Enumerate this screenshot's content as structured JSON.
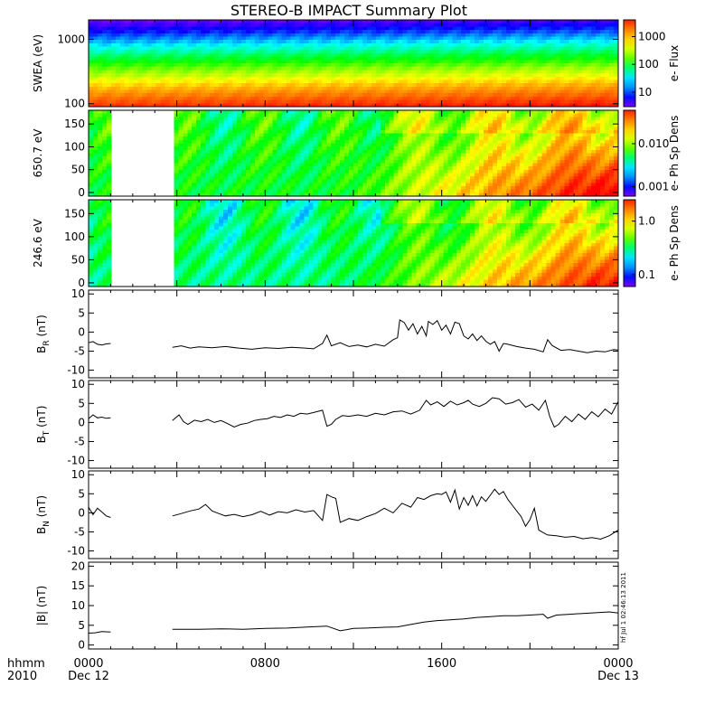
{
  "title": "STEREO-B IMPACT Summary Plot",
  "stamp": "hf Jul 1 02:46:13 2011",
  "x_axis": {
    "row1_label": "hhmm",
    "row2_label": "2010",
    "ticks": [
      {
        "hour": 0,
        "label": "0000",
        "sublabel": "Dec 12"
      },
      {
        "hour": 8,
        "label": "0800",
        "sublabel": ""
      },
      {
        "hour": 16,
        "label": "1600",
        "sublabel": ""
      },
      {
        "hour": 24,
        "label": "0000",
        "sublabel": "Dec 13"
      }
    ],
    "range_hours": [
      0,
      24
    ]
  },
  "chart_data": [
    {
      "type": "heatmap",
      "ylabel": "SWEA (eV)",
      "yscale": "log",
      "ylim": [
        90,
        2000
      ],
      "yticks": [
        {
          "v": 100,
          "label": "100"
        },
        {
          "v": 1000,
          "label": "1000"
        }
      ],
      "colorbar_label": "e- Flux",
      "colorbar_scale": "log",
      "colorbar_range": [
        3,
        4000
      ],
      "colorbar_ticks": [
        {
          "v": 10,
          "label": "10"
        },
        {
          "v": 100,
          "label": "100"
        },
        {
          "v": 1000,
          "label": "1000"
        }
      ]
    },
    {
      "type": "heatmap",
      "ylabel": "650.7 eV",
      "ylim": [
        -8,
        180
      ],
      "yticks": [
        0,
        50,
        100,
        150
      ],
      "colorbar_label": "e- Ph Sp Dens",
      "colorbar_scale": "log",
      "colorbar_range": [
        0.0006,
        0.06
      ],
      "colorbar_ticks": [
        {
          "v": 0.001,
          "label": "0.001"
        },
        {
          "v": 0.01,
          "label": "0.010"
        }
      ],
      "data_gaps_hours": [
        [
          1.0,
          3.8
        ]
      ]
    },
    {
      "type": "heatmap",
      "ylabel": "246.6 eV",
      "ylim": [
        -8,
        180
      ],
      "yticks": [
        0,
        50,
        100,
        150
      ],
      "colorbar_label": "e- Ph Sp Dens",
      "colorbar_scale": "log",
      "colorbar_range": [
        0.06,
        2.5
      ],
      "colorbar_ticks": [
        {
          "v": 0.1,
          "label": "0.1"
        },
        {
          "v": 1.0,
          "label": "1.0"
        }
      ],
      "data_gaps_hours": [
        [
          1.0,
          3.8
        ]
      ]
    },
    {
      "type": "line",
      "ylabel": "B",
      "ylabel_sub": "R",
      "ylabel_unit": "(nT)",
      "ylim": [
        -12,
        11
      ],
      "yticks": [
        -10,
        -5,
        0,
        5,
        10
      ],
      "segments": [
        [
          [
            0.0,
            -2.8
          ],
          [
            0.2,
            -2.5
          ],
          [
            0.4,
            -3.2
          ],
          [
            0.6,
            -3.4
          ],
          [
            0.8,
            -3.1
          ],
          [
            1.0,
            -3.0
          ]
        ],
        [
          [
            3.8,
            -4.0
          ],
          [
            4.2,
            -3.6
          ],
          [
            4.6,
            -4.2
          ],
          [
            5.0,
            -3.9
          ],
          [
            5.6,
            -4.1
          ],
          [
            6.2,
            -3.8
          ],
          [
            6.8,
            -4.2
          ],
          [
            7.4,
            -4.5
          ],
          [
            8.0,
            -4.1
          ],
          [
            8.6,
            -4.3
          ],
          [
            9.2,
            -4.0
          ],
          [
            9.8,
            -4.2
          ],
          [
            10.2,
            -4.4
          ],
          [
            10.6,
            -3.0
          ],
          [
            10.8,
            -0.8
          ],
          [
            11.0,
            -3.6
          ],
          [
            11.4,
            -2.8
          ],
          [
            11.8,
            -3.8
          ],
          [
            12.2,
            -3.4
          ],
          [
            12.6,
            -3.9
          ],
          [
            13.0,
            -3.2
          ],
          [
            13.4,
            -3.7
          ],
          [
            13.8,
            -2.0
          ],
          [
            14.0,
            -1.5
          ],
          [
            14.1,
            3.2
          ],
          [
            14.3,
            2.5
          ],
          [
            14.5,
            0.5
          ],
          [
            14.7,
            2.2
          ],
          [
            14.9,
            -0.5
          ],
          [
            15.1,
            1.5
          ],
          [
            15.3,
            -1.0
          ],
          [
            15.4,
            2.8
          ],
          [
            15.6,
            2.0
          ],
          [
            15.8,
            3.0
          ],
          [
            16.0,
            0.5
          ],
          [
            16.2,
            1.8
          ],
          [
            16.4,
            -0.5
          ],
          [
            16.6,
            2.6
          ],
          [
            16.8,
            2.2
          ],
          [
            17.0,
            -1.0
          ],
          [
            17.2,
            -1.8
          ],
          [
            17.4,
            -0.5
          ],
          [
            17.6,
            -2.2
          ],
          [
            17.8,
            -1.0
          ],
          [
            18.0,
            -2.4
          ],
          [
            18.2,
            -3.2
          ],
          [
            18.4,
            -2.5
          ],
          [
            18.6,
            -5.0
          ],
          [
            18.8,
            -3.0
          ],
          [
            19.0,
            -3.2
          ],
          [
            19.4,
            -3.8
          ],
          [
            19.8,
            -4.2
          ],
          [
            20.2,
            -4.5
          ],
          [
            20.6,
            -5.2
          ],
          [
            20.8,
            -2.0
          ],
          [
            21.0,
            -3.5
          ],
          [
            21.4,
            -4.8
          ],
          [
            21.8,
            -4.6
          ],
          [
            22.2,
            -5.0
          ],
          [
            22.6,
            -5.4
          ],
          [
            23.0,
            -5.0
          ],
          [
            23.4,
            -5.2
          ],
          [
            23.8,
            -4.6
          ],
          [
            24.0,
            -4.7
          ]
        ]
      ]
    },
    {
      "type": "line",
      "ylabel": "B",
      "ylabel_sub": "T",
      "ylabel_unit": "(nT)",
      "ylim": [
        -12,
        11
      ],
      "yticks": [
        -10,
        -5,
        0,
        5,
        10
      ],
      "segments": [
        [
          [
            0.0,
            1.0
          ],
          [
            0.2,
            2.0
          ],
          [
            0.4,
            1.2
          ],
          [
            0.6,
            1.4
          ],
          [
            0.8,
            1.1
          ],
          [
            1.0,
            1.2
          ]
        ],
        [
          [
            3.8,
            0.5
          ],
          [
            4.1,
            2.0
          ],
          [
            4.3,
            0.2
          ],
          [
            4.5,
            -0.5
          ],
          [
            4.8,
            0.6
          ],
          [
            5.1,
            0.2
          ],
          [
            5.4,
            0.8
          ],
          [
            5.7,
            0.0
          ],
          [
            6.0,
            0.5
          ],
          [
            6.3,
            -0.3
          ],
          [
            6.6,
            -1.2
          ],
          [
            6.9,
            -0.5
          ],
          [
            7.2,
            -0.2
          ],
          [
            7.5,
            0.5
          ],
          [
            7.8,
            0.8
          ],
          [
            8.1,
            1.0
          ],
          [
            8.4,
            1.6
          ],
          [
            8.7,
            1.3
          ],
          [
            9.0,
            2.0
          ],
          [
            9.3,
            1.6
          ],
          [
            9.6,
            2.4
          ],
          [
            9.9,
            2.2
          ],
          [
            10.2,
            2.6
          ],
          [
            10.6,
            3.2
          ],
          [
            10.8,
            -1.0
          ],
          [
            11.0,
            -0.5
          ],
          [
            11.2,
            0.8
          ],
          [
            11.5,
            1.8
          ],
          [
            11.8,
            1.6
          ],
          [
            12.2,
            2.0
          ],
          [
            12.6,
            1.6
          ],
          [
            13.0,
            2.4
          ],
          [
            13.4,
            2.0
          ],
          [
            13.8,
            2.8
          ],
          [
            14.2,
            3.0
          ],
          [
            14.6,
            2.2
          ],
          [
            15.0,
            3.2
          ],
          [
            15.3,
            5.8
          ],
          [
            15.5,
            4.6
          ],
          [
            15.8,
            5.4
          ],
          [
            16.1,
            4.2
          ],
          [
            16.4,
            5.6
          ],
          [
            16.7,
            4.6
          ],
          [
            17.0,
            5.2
          ],
          [
            17.2,
            5.8
          ],
          [
            17.4,
            4.8
          ],
          [
            17.7,
            4.2
          ],
          [
            18.0,
            5.0
          ],
          [
            18.3,
            6.5
          ],
          [
            18.6,
            6.2
          ],
          [
            18.9,
            4.8
          ],
          [
            19.2,
            5.2
          ],
          [
            19.5,
            6.0
          ],
          [
            19.8,
            4.0
          ],
          [
            20.1,
            4.8
          ],
          [
            20.4,
            3.2
          ],
          [
            20.7,
            5.8
          ],
          [
            20.9,
            1.5
          ],
          [
            21.1,
            -1.2
          ],
          [
            21.3,
            -0.5
          ],
          [
            21.6,
            1.6
          ],
          [
            21.9,
            0.2
          ],
          [
            22.2,
            2.2
          ],
          [
            22.5,
            0.8
          ],
          [
            22.8,
            2.8
          ],
          [
            23.1,
            1.5
          ],
          [
            23.4,
            3.5
          ],
          [
            23.7,
            2.2
          ],
          [
            24.0,
            5.5
          ]
        ]
      ]
    },
    {
      "type": "line",
      "ylabel": "B",
      "ylabel_sub": "N",
      "ylabel_unit": "(nT)",
      "ylim": [
        -12,
        11
      ],
      "yticks": [
        -10,
        -5,
        0,
        5,
        10
      ],
      "segments": [
        [
          [
            0.0,
            1.5
          ],
          [
            0.2,
            -0.5
          ],
          [
            0.4,
            1.2
          ],
          [
            0.6,
            0.2
          ],
          [
            0.8,
            -0.8
          ],
          [
            1.0,
            -1.2
          ]
        ],
        [
          [
            3.8,
            -0.8
          ],
          [
            4.2,
            -0.2
          ],
          [
            4.6,
            0.5
          ],
          [
            5.0,
            1.0
          ],
          [
            5.3,
            2.2
          ],
          [
            5.6,
            0.5
          ],
          [
            5.9,
            -0.2
          ],
          [
            6.2,
            -0.8
          ],
          [
            6.6,
            -0.4
          ],
          [
            7.0,
            -1.0
          ],
          [
            7.4,
            -0.5
          ],
          [
            7.8,
            0.4
          ],
          [
            8.2,
            -0.6
          ],
          [
            8.6,
            0.3
          ],
          [
            9.0,
            0.0
          ],
          [
            9.4,
            0.8
          ],
          [
            9.8,
            0.2
          ],
          [
            10.2,
            0.6
          ],
          [
            10.6,
            -2.0
          ],
          [
            10.8,
            4.8
          ],
          [
            11.0,
            4.2
          ],
          [
            11.2,
            3.8
          ],
          [
            11.4,
            -2.5
          ],
          [
            11.8,
            -1.5
          ],
          [
            12.2,
            -2.0
          ],
          [
            12.6,
            -1.0
          ],
          [
            13.0,
            -0.2
          ],
          [
            13.4,
            1.2
          ],
          [
            13.8,
            0.0
          ],
          [
            14.2,
            2.5
          ],
          [
            14.6,
            1.5
          ],
          [
            14.9,
            4.0
          ],
          [
            15.2,
            3.5
          ],
          [
            15.5,
            4.5
          ],
          [
            15.8,
            5.0
          ],
          [
            16.0,
            4.8
          ],
          [
            16.2,
            5.5
          ],
          [
            16.4,
            2.8
          ],
          [
            16.6,
            6.0
          ],
          [
            16.8,
            1.0
          ],
          [
            17.0,
            4.0
          ],
          [
            17.2,
            2.0
          ],
          [
            17.4,
            4.5
          ],
          [
            17.6,
            1.8
          ],
          [
            17.8,
            4.2
          ],
          [
            18.0,
            3.0
          ],
          [
            18.2,
            4.6
          ],
          [
            18.4,
            6.2
          ],
          [
            18.6,
            4.8
          ],
          [
            18.8,
            5.6
          ],
          [
            19.0,
            3.5
          ],
          [
            19.2,
            2.0
          ],
          [
            19.4,
            0.5
          ],
          [
            19.6,
            -1.0
          ],
          [
            19.8,
            -3.5
          ],
          [
            20.0,
            -1.8
          ],
          [
            20.2,
            1.2
          ],
          [
            20.4,
            -4.5
          ],
          [
            20.6,
            -5.2
          ],
          [
            20.8,
            -5.8
          ],
          [
            21.2,
            -6.0
          ],
          [
            21.6,
            -6.4
          ],
          [
            22.0,
            -6.2
          ],
          [
            22.4,
            -6.8
          ],
          [
            22.8,
            -6.5
          ],
          [
            23.2,
            -6.9
          ],
          [
            23.6,
            -6.0
          ],
          [
            24.0,
            -4.5
          ]
        ]
      ]
    },
    {
      "type": "line",
      "ylabel": "|B| (nT)",
      "ylim": [
        -1,
        21
      ],
      "yticks": [
        0,
        5,
        10,
        15,
        20
      ],
      "segments": [
        [
          [
            0.0,
            3.0
          ],
          [
            0.3,
            3.1
          ],
          [
            0.6,
            3.4
          ],
          [
            1.0,
            3.3
          ]
        ],
        [
          [
            3.8,
            4.0
          ],
          [
            5.0,
            4.0
          ],
          [
            6.0,
            4.1
          ],
          [
            7.0,
            4.0
          ],
          [
            8.0,
            4.2
          ],
          [
            9.0,
            4.3
          ],
          [
            10.0,
            4.6
          ],
          [
            10.8,
            4.8
          ],
          [
            11.4,
            3.6
          ],
          [
            12.0,
            4.2
          ],
          [
            12.6,
            4.3
          ],
          [
            13.4,
            4.5
          ],
          [
            14.0,
            4.6
          ],
          [
            14.6,
            5.2
          ],
          [
            15.2,
            5.8
          ],
          [
            15.8,
            6.2
          ],
          [
            16.4,
            6.4
          ],
          [
            17.0,
            6.6
          ],
          [
            17.6,
            7.0
          ],
          [
            18.2,
            7.2
          ],
          [
            18.8,
            7.4
          ],
          [
            19.4,
            7.4
          ],
          [
            20.0,
            7.6
          ],
          [
            20.6,
            7.8
          ],
          [
            20.8,
            6.8
          ],
          [
            21.2,
            7.6
          ],
          [
            21.8,
            7.8
          ],
          [
            22.4,
            8.0
          ],
          [
            23.0,
            8.2
          ],
          [
            23.6,
            8.4
          ],
          [
            24.0,
            8.1
          ]
        ]
      ]
    }
  ],
  "colors": {
    "axis": "#000000",
    "line": "#000000",
    "colormap": [
      "#7d00ff",
      "#0010ff",
      "#0090ff",
      "#00e4ff",
      "#00ff70",
      "#60ff00",
      "#d8ff00",
      "#ffd000",
      "#ff8000",
      "#ff2000"
    ]
  }
}
